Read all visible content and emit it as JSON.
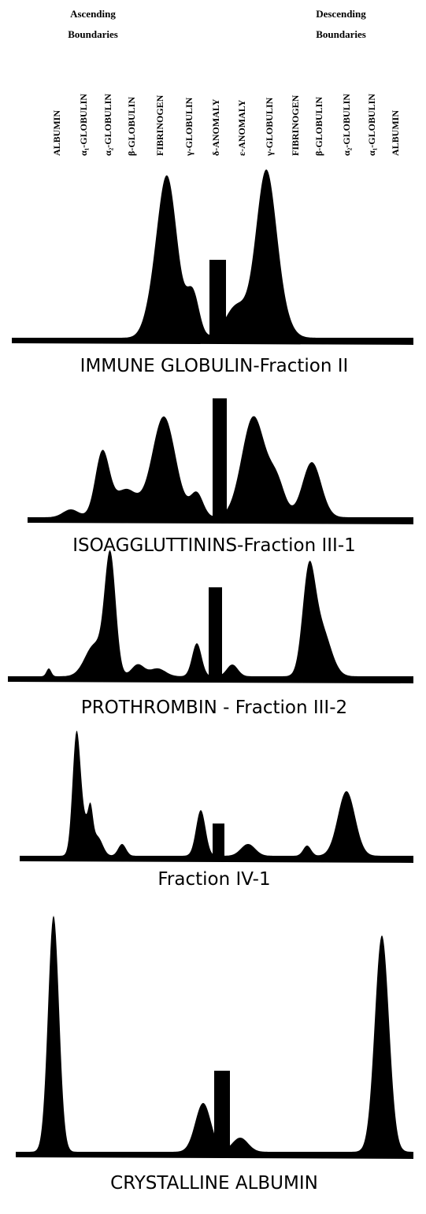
{
  "header": {
    "ascending": [
      "Ascending",
      "Boundaries"
    ],
    "descending": [
      "Descending",
      "Boundaries"
    ]
  },
  "column_labels": [
    [
      "ALBUMIN"
    ],
    [
      "α₁-GLOBULIN"
    ],
    [
      "α₂-GLOBULIN"
    ],
    [
      "β-GLOBULIN",
      "FIBRINOGEN"
    ],
    [
      "γ-GLOBULIN"
    ],
    [
      "δ-ANOMALY"
    ],
    [
      "ε-ANOMALY"
    ],
    [
      "γ-GLOBULIN"
    ],
    [
      "FIBRINOGEN",
      "β-GLOBULIN"
    ],
    [
      "α₂-GLOBULIN"
    ],
    [
      "α₁-GLOBULIN"
    ],
    [
      "ALBUMIN"
    ]
  ],
  "patterns": [
    {
      "caption": "IMMUNE GLOBULIN-Fraction II"
    },
    {
      "caption": "ISOAGGLUTTININS-Fraction III-1"
    },
    {
      "caption": "PROTHROMBIN - Fraction III-2"
    },
    {
      "caption": "Fraction IV-1"
    },
    {
      "caption": "CRYSTALLINE ALBUMIN"
    }
  ]
}
